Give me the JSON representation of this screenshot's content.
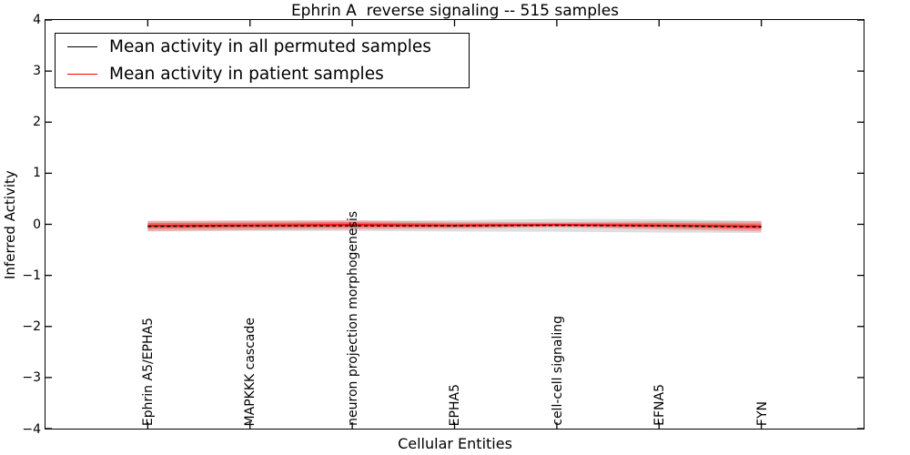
{
  "chart_data": {
    "type": "line",
    "title": "Ephrin A  reverse signaling -- 515 samples",
    "xlabel": "Cellular Entities",
    "ylabel": "Inferred Activity",
    "xlim": [
      -1,
      7
    ],
    "ylim": [
      -4,
      4
    ],
    "grid": false,
    "legend_position": "upper left",
    "categories": [
      "Ephrin A5/EPHA5",
      "MAPKKK cascade",
      "neuron projection morphogenesis",
      "EPHA5",
      "cell-cell signaling",
      "EFNA5",
      "FYN"
    ],
    "x": [
      0,
      1,
      2,
      3,
      4,
      5,
      6
    ],
    "xticks": [
      0,
      1,
      2,
      3,
      4,
      5,
      6
    ],
    "yticks": [
      4,
      3,
      2,
      1,
      0,
      -1,
      -2,
      -3,
      -4
    ],
    "ytick_labels": [
      "4",
      "3",
      "2",
      "1",
      "0",
      "−1",
      "−2",
      "−3",
      "−4"
    ],
    "series": [
      {
        "name": "Mean activity in all permuted samples",
        "color": "#000000",
        "line_style": "dashed",
        "values": [
          -0.04,
          -0.03,
          -0.03,
          -0.03,
          -0.02,
          -0.03,
          -0.05
        ],
        "band_halfwidth": [
          0.1,
          0.1,
          0.1,
          0.11,
          0.125,
          0.13,
          0.12
        ],
        "band_fill": "rgba(0,0,0,0.13)"
      },
      {
        "name": "Mean activity in patient samples",
        "color": "#ff0000",
        "line_style": "solid",
        "values": [
          -0.03,
          -0.02,
          -0.01,
          -0.02,
          -0.01,
          -0.02,
          -0.04
        ],
        "band_halfwidth": [
          0.1,
          0.095,
          0.09,
          0.07,
          0.05,
          0.08,
          0.1
        ],
        "band_fill": "rgba(255,0,0,0.22)",
        "band_inner_fill": "rgba(255,0,0,0.40)"
      }
    ]
  },
  "legend": {
    "items": [
      {
        "label": "Mean activity in all permuted samples",
        "color": "#000000"
      },
      {
        "label": "Mean activity in patient samples",
        "color": "#ff0000"
      }
    ]
  }
}
